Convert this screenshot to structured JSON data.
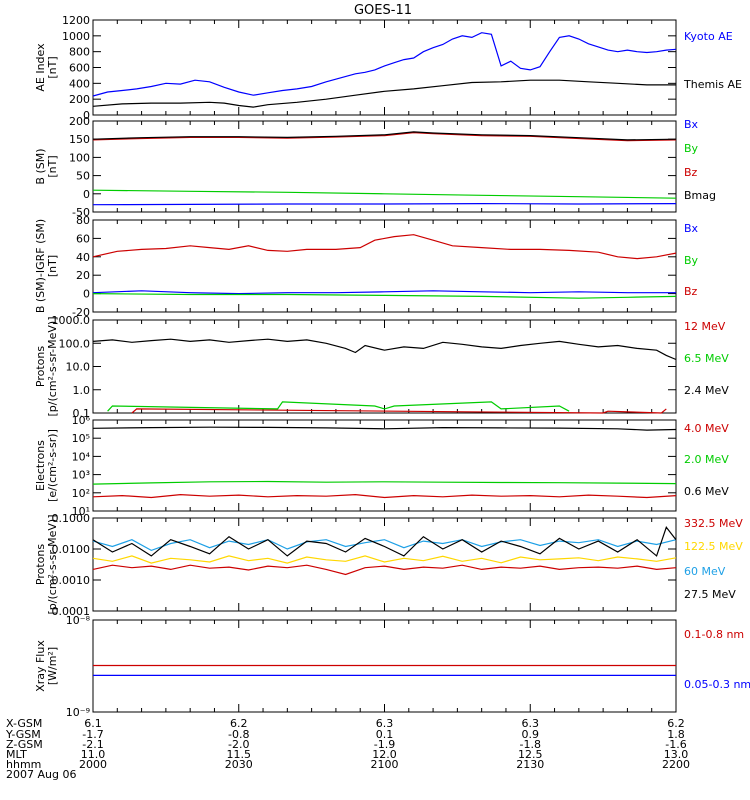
{
  "title": "GOES-11",
  "chart_data": [
    {
      "type": "line",
      "panel": "ae",
      "ylabel": [
        "AE Index",
        "[nT]"
      ],
      "ylim": [
        0,
        1200
      ],
      "yticks": [
        0,
        200,
        400,
        600,
        800,
        1000,
        1200
      ],
      "ytick_labels": [
        "0",
        "200",
        "400",
        "600",
        "800",
        "1000",
        "1200"
      ],
      "log": false,
      "series": [
        {
          "name": "Kyoto AE",
          "color": "#0000ff",
          "x": [
            0,
            3,
            6,
            9,
            12,
            15,
            18,
            21,
            24,
            27,
            30,
            33,
            36,
            39,
            42,
            45,
            48,
            51,
            54,
            56,
            58,
            60,
            62,
            64,
            66,
            68,
            70,
            72,
            74,
            76,
            78,
            80,
            82,
            84,
            86,
            88,
            90,
            92,
            94,
            96,
            98,
            100,
            102,
            104,
            106,
            108,
            110,
            112,
            114,
            116,
            118,
            120
          ],
          "values": [
            240,
            290,
            310,
            330,
            360,
            400,
            390,
            440,
            420,
            350,
            290,
            250,
            280,
            310,
            330,
            360,
            420,
            470,
            520,
            540,
            570,
            620,
            660,
            700,
            720,
            800,
            850,
            890,
            960,
            1000,
            980,
            1040,
            1020,
            620,
            680,
            590,
            570,
            610,
            800,
            980,
            1000,
            960,
            900,
            860,
            820,
            800,
            820,
            800,
            790,
            800,
            820,
            830
          ]
        },
        {
          "name": "Themis AE",
          "color": "#000000",
          "x": [
            0,
            6,
            12,
            18,
            24,
            27,
            30,
            33,
            36,
            42,
            48,
            54,
            60,
            66,
            72,
            78,
            84,
            90,
            96,
            102,
            108,
            114,
            120
          ],
          "values": [
            110,
            140,
            150,
            150,
            160,
            150,
            120,
            100,
            130,
            160,
            200,
            250,
            300,
            330,
            370,
            410,
            420,
            440,
            440,
            420,
            400,
            380,
            380
          ]
        }
      ]
    },
    {
      "type": "line",
      "panel": "b_sm",
      "ylabel": [
        "B (SM)",
        "[nT]"
      ],
      "ylim": [
        -50,
        200
      ],
      "yticks": [
        -50,
        0,
        50,
        100,
        150,
        200
      ],
      "ytick_labels": [
        "-50",
        "0",
        "50",
        "100",
        "150",
        "200"
      ],
      "log": false,
      "series": [
        {
          "name": "Bx",
          "color": "#0000ff",
          "x": [
            0,
            20,
            40,
            60,
            80,
            100,
            120
          ],
          "values": [
            -30,
            -29,
            -28,
            -28,
            -27,
            -28,
            -27
          ]
        },
        {
          "name": "By",
          "color": "#00cc00",
          "x": [
            0,
            20,
            40,
            60,
            80,
            100,
            120
          ],
          "values": [
            10,
            7,
            4,
            0,
            -4,
            -8,
            -12
          ]
        },
        {
          "name": "Bz",
          "color": "#cc0000",
          "x": [
            0,
            10,
            20,
            30,
            40,
            50,
            60,
            66,
            70,
            80,
            90,
            100,
            110,
            120
          ],
          "values": [
            148,
            152,
            155,
            155,
            153,
            156,
            160,
            168,
            165,
            160,
            158,
            152,
            146,
            148
          ]
        },
        {
          "name": "Bmag",
          "color": "#000000",
          "x": [
            0,
            10,
            20,
            30,
            40,
            50,
            60,
            66,
            70,
            80,
            90,
            100,
            110,
            120
          ],
          "values": [
            150,
            154,
            157,
            157,
            155,
            158,
            162,
            170,
            167,
            162,
            160,
            154,
            148,
            150
          ]
        }
      ]
    },
    {
      "type": "line",
      "panel": "b_sm_igrf",
      "ylabel": [
        "B (SM)-IGRF (SM)",
        "[nT]"
      ],
      "ylim": [
        -20,
        80
      ],
      "yticks": [
        -20,
        0,
        20,
        40,
        60,
        80
      ],
      "ytick_labels": [
        "-20",
        "0",
        "20",
        "40",
        "60",
        "80"
      ],
      "log": false,
      "series": [
        {
          "name": "Bx",
          "color": "#0000ff",
          "x": [
            0,
            10,
            20,
            30,
            40,
            50,
            60,
            70,
            80,
            90,
            100,
            110,
            120
          ],
          "values": [
            1,
            3,
            1,
            0,
            1,
            1,
            2,
            3,
            2,
            1,
            2,
            1,
            1
          ]
        },
        {
          "name": "By",
          "color": "#00cc00",
          "x": [
            0,
            20,
            40,
            60,
            80,
            100,
            110,
            120
          ],
          "values": [
            0,
            -1,
            -1,
            -2,
            -3,
            -5,
            -4,
            -3
          ]
        },
        {
          "name": "Bz",
          "color": "#cc0000",
          "x": [
            0,
            5,
            10,
            15,
            20,
            24,
            28,
            32,
            36,
            40,
            44,
            50,
            55,
            58,
            62,
            66,
            70,
            74,
            80,
            86,
            92,
            98,
            104,
            108,
            112,
            116,
            120
          ],
          "values": [
            40,
            46,
            48,
            49,
            52,
            50,
            48,
            52,
            47,
            46,
            48,
            48,
            50,
            58,
            62,
            64,
            58,
            52,
            50,
            48,
            48,
            47,
            45,
            40,
            38,
            40,
            44
          ]
        }
      ]
    },
    {
      "type": "line",
      "panel": "protons_low",
      "ylabel": [
        "Protons",
        "[p/(cm²-s-sr-MeV)]"
      ],
      "ylim": [
        0.1,
        1000
      ],
      "yticks": [
        0.1,
        1,
        10,
        100,
        1000
      ],
      "ytick_labels": [
        "0.1",
        "1.0",
        "10.0",
        "100.0",
        "1000.0"
      ],
      "log": true,
      "series": [
        {
          "name": "12 MeV",
          "color": "#cc0000",
          "x": [
            8,
            9,
            105,
            106,
            117,
            118
          ],
          "values": [
            0.1,
            0.15,
            0.1,
            0.12,
            0.1,
            0.15
          ]
        },
        {
          "name": "6.5 MeV",
          "color": "#00cc00",
          "x": [
            3,
            4,
            38,
            39,
            58,
            60,
            62,
            82,
            84,
            96,
            98
          ],
          "values": [
            0.12,
            0.2,
            0.15,
            0.3,
            0.2,
            0.15,
            0.2,
            0.3,
            0.15,
            0.2,
            0.12
          ]
        },
        {
          "name": "2.4 MeV",
          "color": "#000000",
          "x": [
            0,
            4,
            8,
            12,
            16,
            20,
            24,
            28,
            32,
            36,
            40,
            44,
            48,
            52,
            54,
            56,
            60,
            64,
            68,
            72,
            76,
            80,
            84,
            88,
            92,
            96,
            100,
            104,
            108,
            112,
            116,
            118,
            120
          ],
          "values": [
            120,
            140,
            110,
            130,
            150,
            120,
            140,
            110,
            130,
            150,
            120,
            140,
            100,
            60,
            40,
            80,
            50,
            70,
            60,
            110,
            90,
            70,
            60,
            80,
            100,
            120,
            90,
            70,
            80,
            60,
            50,
            30,
            20
          ]
        }
      ]
    },
    {
      "type": "line",
      "panel": "electrons",
      "ylabel": [
        "Electrons",
        "[e/(cm²-s-sr)]"
      ],
      "ylim": [
        10,
        1000000
      ],
      "yticks": [
        10,
        100,
        1000,
        10000,
        100000,
        1000000
      ],
      "ytick_labels": [
        "10¹",
        "10²",
        "10³",
        "10⁴",
        "10⁵",
        "10⁶"
      ],
      "log": true,
      "series": [
        {
          "name": "4.0 MeV",
          "color": "#cc0000",
          "x": [
            0,
            6,
            12,
            18,
            24,
            30,
            36,
            42,
            48,
            54,
            60,
            66,
            72,
            78,
            84,
            90,
            96,
            102,
            108,
            114,
            120
          ],
          "values": [
            60,
            70,
            55,
            80,
            65,
            75,
            60,
            70,
            65,
            80,
            55,
            70,
            60,
            75,
            65,
            70,
            60,
            75,
            65,
            55,
            70
          ]
        },
        {
          "name": "2.0 MeV",
          "color": "#00cc00",
          "x": [
            0,
            12,
            24,
            36,
            48,
            60,
            72,
            84,
            96,
            108,
            120
          ],
          "values": [
            300,
            350,
            400,
            420,
            380,
            400,
            380,
            370,
            360,
            340,
            320
          ]
        },
        {
          "name": "0.6 MeV",
          "color": "#000000",
          "x": [
            0,
            12,
            24,
            36,
            48,
            60,
            72,
            84,
            96,
            108,
            114,
            120
          ],
          "values": [
            350000,
            380000,
            400000,
            390000,
            370000,
            330000,
            380000,
            370000,
            360000,
            330000,
            280000,
            300000
          ]
        }
      ]
    },
    {
      "type": "line",
      "panel": "protons_high",
      "ylabel": [
        "Protons",
        "[p/(cm²-s-sr-MeV)]"
      ],
      "ylim": [
        0.0001,
        0.1
      ],
      "yticks": [
        0.0001,
        0.001,
        0.01,
        0.1
      ],
      "ytick_labels": [
        "0.0001",
        "0.0010",
        "0.0100",
        "0.1000"
      ],
      "log": true,
      "series": [
        {
          "name": "332.5 MeV",
          "color": "#cc0000",
          "x": [
            0,
            4,
            8,
            12,
            16,
            20,
            24,
            28,
            32,
            36,
            40,
            44,
            48,
            52,
            56,
            60,
            64,
            68,
            72,
            76,
            80,
            84,
            88,
            92,
            96,
            100,
            104,
            108,
            112,
            116,
            120
          ],
          "values": [
            0.0022,
            0.003,
            0.0025,
            0.0028,
            0.0022,
            0.003,
            0.0024,
            0.0026,
            0.0021,
            0.0028,
            0.0025,
            0.003,
            0.0022,
            0.0015,
            0.0025,
            0.0028,
            0.0022,
            0.0026,
            0.0024,
            0.003,
            0.0022,
            0.0026,
            0.0024,
            0.0028,
            0.0022,
            0.0025,
            0.0026,
            0.0024,
            0.0028,
            0.0022,
            0.0025
          ]
        },
        {
          "name": "122.5 MeV",
          "color": "#ffd700",
          "x": [
            0,
            4,
            8,
            12,
            16,
            20,
            24,
            28,
            32,
            36,
            40,
            44,
            48,
            52,
            56,
            60,
            64,
            68,
            72,
            76,
            80,
            84,
            88,
            92,
            96,
            100,
            104,
            108,
            112,
            116,
            120
          ],
          "values": [
            0.005,
            0.004,
            0.006,
            0.0035,
            0.005,
            0.0045,
            0.0038,
            0.006,
            0.0042,
            0.005,
            0.0035,
            0.0055,
            0.0045,
            0.004,
            0.006,
            0.0038,
            0.005,
            0.0042,
            0.0058,
            0.004,
            0.005,
            0.0036,
            0.0055,
            0.0045,
            0.0048,
            0.0052,
            0.0042,
            0.0055,
            0.0048,
            0.004,
            0.0052
          ]
        },
        {
          "name": "60 MeV",
          "color": "#1ea0e6",
          "x": [
            0,
            4,
            8,
            12,
            16,
            20,
            24,
            28,
            32,
            36,
            40,
            44,
            48,
            52,
            56,
            60,
            64,
            68,
            72,
            76,
            80,
            84,
            88,
            92,
            96,
            100,
            104,
            108,
            112,
            116,
            120
          ],
          "values": [
            0.018,
            0.012,
            0.02,
            0.009,
            0.015,
            0.02,
            0.011,
            0.018,
            0.014,
            0.02,
            0.01,
            0.017,
            0.02,
            0.012,
            0.016,
            0.02,
            0.011,
            0.018,
            0.015,
            0.02,
            0.012,
            0.017,
            0.02,
            0.013,
            0.018,
            0.016,
            0.02,
            0.012,
            0.018,
            0.014,
            0.02
          ]
        },
        {
          "name": "27.5 MeV",
          "color": "#000000",
          "x": [
            0,
            4,
            8,
            12,
            16,
            20,
            24,
            28,
            32,
            36,
            40,
            44,
            48,
            52,
            56,
            60,
            64,
            68,
            72,
            76,
            80,
            84,
            88,
            92,
            96,
            100,
            104,
            108,
            112,
            116,
            118,
            120
          ],
          "values": [
            0.02,
            0.008,
            0.015,
            0.006,
            0.02,
            0.012,
            0.007,
            0.025,
            0.01,
            0.02,
            0.006,
            0.018,
            0.015,
            0.008,
            0.022,
            0.012,
            0.006,
            0.025,
            0.01,
            0.02,
            0.008,
            0.018,
            0.012,
            0.007,
            0.022,
            0.01,
            0.018,
            0.008,
            0.02,
            0.006,
            0.05,
            0.02
          ]
        }
      ]
    },
    {
      "type": "line",
      "panel": "xray",
      "ylabel": [
        "Xray Flux",
        "[W/m²]"
      ],
      "ylim": [
        1e-09,
        1e-08
      ],
      "yticks": [
        1e-09,
        1e-08
      ],
      "ytick_labels": [
        "10⁻⁹",
        "10⁻⁸"
      ],
      "log": true,
      "series": [
        {
          "name": "0.1-0.8 nm",
          "color": "#cc0000",
          "x": [
            0,
            120
          ],
          "values": [
            3.2e-09,
            3.2e-09
          ]
        },
        {
          "name": "0.05-0.3 nm",
          "color": "#0000ff",
          "x": [
            0,
            30,
            60,
            90,
            120
          ],
          "values": [
            2.5e-09,
            2.5e-09,
            2.5e-09,
            2.5e-09,
            2.5e-09
          ]
        }
      ]
    }
  ],
  "orbit_table": {
    "row_labels": [
      "X-GSM",
      "Y-GSM",
      "Z-GSM",
      "MLT",
      "hhmm"
    ],
    "x": [
      0,
      30,
      60,
      90,
      120
    ],
    "columns": [
      [
        "6.1",
        "-1.7",
        "-2.1",
        "11.0",
        "2000"
      ],
      [
        "6.2",
        "-0.8",
        "-2.0",
        "11.5",
        "2030"
      ],
      [
        "6.3",
        "0.1",
        "-1.9",
        "12.0",
        "2100"
      ],
      [
        "6.3",
        "0.9",
        "-1.8",
        "12.5",
        "2130"
      ],
      [
        "6.2",
        "1.8",
        "-1.6",
        "13.0",
        "2200"
      ]
    ],
    "date": "2007 Aug 06"
  }
}
